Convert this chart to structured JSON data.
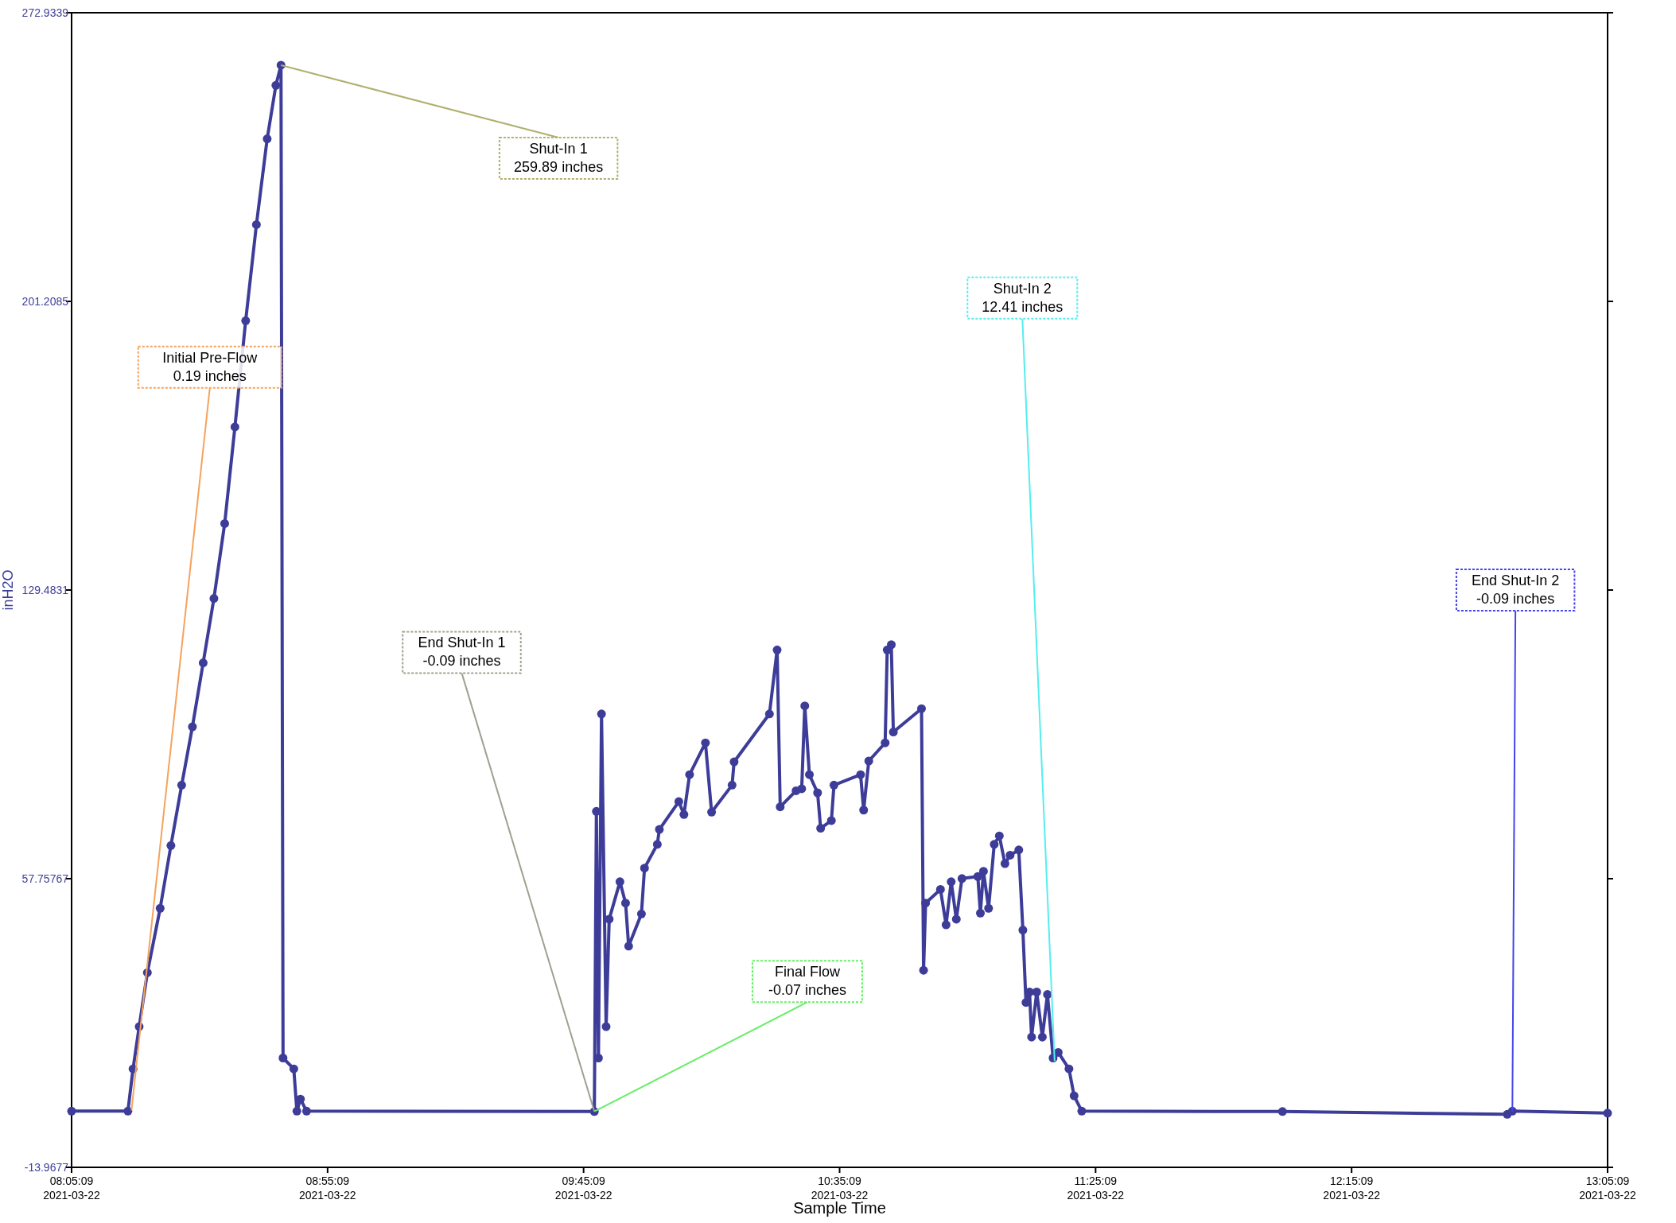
{
  "chart_data": {
    "type": "line",
    "xlabel": "Sample Time",
    "ylabel": "inH2O",
    "x": [
      "2021-03-22T08:05:09",
      "2021-03-22T08:16:09",
      "2021-03-22T08:17:09",
      "2021-03-22T08:18:21",
      "2021-03-22T08:19:57",
      "2021-03-22T08:22:27",
      "2021-03-22T08:24:33",
      "2021-03-22T08:26:39",
      "2021-03-22T08:28:45",
      "2021-03-22T08:30:51",
      "2021-03-22T08:32:57",
      "2021-03-22T08:35:03",
      "2021-03-22T08:37:03",
      "2021-03-22T08:39:09",
      "2021-03-22T08:41:15",
      "2021-03-22T08:43:21",
      "2021-03-22T08:45:03",
      "2021-03-22T08:46:03",
      "2021-03-22T08:46:27",
      "2021-03-22T08:48:33",
      "2021-03-22T08:49:09",
      "2021-03-22T08:49:51",
      "2021-03-22T08:51:03",
      "2021-03-22T09:47:15",
      "2021-03-22T09:47:39",
      "2021-03-22T09:48:03",
      "2021-03-22T09:48:39",
      "2021-03-22T09:49:33",
      "2021-03-22T09:50:09",
      "2021-03-22T09:52:15",
      "2021-03-22T09:53:21",
      "2021-03-22T09:53:57",
      "2021-03-22T09:56:27",
      "2021-03-22T09:57:03",
      "2021-03-22T09:59:33",
      "2021-03-22T09:59:57",
      "2021-03-22T10:03:45",
      "2021-03-22T10:04:45",
      "2021-03-22T10:05:51",
      "2021-03-22T10:08:57",
      "2021-03-22T10:10:09",
      "2021-03-22T10:14:09",
      "2021-03-22T10:14:33",
      "2021-03-22T10:21:27",
      "2021-03-22T10:22:57",
      "2021-03-22T10:23:33",
      "2021-03-22T10:26:39",
      "2021-03-22T10:27:45",
      "2021-03-22T10:28:21",
      "2021-03-22T10:29:15",
      "2021-03-22T10:30:51",
      "2021-03-22T10:31:27",
      "2021-03-22T10:33:33",
      "2021-03-22T10:34:03",
      "2021-03-22T10:39:15",
      "2021-03-22T10:39:51",
      "2021-03-22T10:40:51",
      "2021-03-22T10:44:03",
      "2021-03-22T10:44:27",
      "2021-03-22T10:45:15",
      "2021-03-22T10:45:39",
      "2021-03-22T10:51:09",
      "2021-03-22T10:51:33",
      "2021-03-22T10:51:57",
      "2021-03-22T10:54:51",
      "2021-03-22T10:55:57",
      "2021-03-22T10:56:57",
      "2021-03-22T10:57:57",
      "2021-03-22T10:59:03",
      "2021-03-22T11:02:09",
      "2021-03-22T11:02:39",
      "2021-03-22T11:03:15",
      "2021-03-22T11:04:15",
      "2021-03-22T11:05:21",
      "2021-03-22T11:06:21",
      "2021-03-22T11:07:27",
      "2021-03-22T11:08:27",
      "2021-03-22T11:10:09",
      "2021-03-22T11:10:57",
      "2021-03-22T11:11:33",
      "2021-03-22T11:12:15",
      "2021-03-22T11:12:39",
      "2021-03-22T11:13:39",
      "2021-03-22T11:14:45",
      "2021-03-22T11:15:45",
      "2021-03-22T11:16:51",
      "2021-03-22T11:17:51",
      "2021-03-22T11:19:57",
      "2021-03-22T11:20:57",
      "2021-03-22T11:22:27",
      "2021-03-22T12:01:39",
      "2021-03-22T12:45:33",
      "2021-03-22T12:46:33",
      "2021-03-22T13:05:09"
    ],
    "series": [
      {
        "color": "#3d3d99",
        "values": [
          0,
          0,
          10.5,
          21,
          34.4,
          50.4,
          66,
          81,
          95.5,
          111.4,
          127.4,
          146,
          170,
          196.4,
          220.3,
          241.6,
          254.9,
          259.9,
          13.2,
          10.5,
          0,
          3,
          0,
          -0.1,
          74.5,
          13.2,
          98.7,
          21,
          47.7,
          57,
          51.7,
          41,
          49,
          60.4,
          66.3,
          70,
          76.9,
          73.7,
          83.6,
          91.5,
          74.3,
          81,
          86.8,
          98.7,
          114.6,
          75.6,
          79.6,
          80.1,
          100.7,
          83.6,
          79.1,
          70.3,
          72.2,
          81,
          83.6,
          74.8,
          87,
          91.5,
          114.6,
          115.9,
          94.2,
          100,
          35,
          51.7,
          55.1,
          46.3,
          57,
          47.7,
          57.8,
          58.3,
          49.2,
          59.6,
          50.4,
          66.3,
          68.4,
          61.5,
          63.6,
          64.9,
          45,
          27,
          29.6,
          18.4,
          29.6,
          18.4,
          29,
          13.2,
          14.6,
          10.5,
          3.8,
          0,
          -0.1,
          -0.8,
          0,
          -0.5
        ]
      }
    ],
    "xlim": [
      "2021-03-22T08:05:09",
      "2021-03-22T13:05:09"
    ],
    "xticks": [
      {
        "value": "2021-03-22T08:05:09",
        "label": "08:05:09\n2021-03-22"
      },
      {
        "value": "2021-03-22T08:55:09",
        "label": "08:55:09\n2021-03-22"
      },
      {
        "value": "2021-03-22T09:45:09",
        "label": "09:45:09\n2021-03-22"
      },
      {
        "value": "2021-03-22T10:35:09",
        "label": "10:35:09\n2021-03-22"
      },
      {
        "value": "2021-03-22T11:25:09",
        "label": "11:25:09\n2021-03-22"
      },
      {
        "value": "2021-03-22T12:15:09",
        "label": "12:15:09\n2021-03-22"
      },
      {
        "value": "2021-03-22T13:05:09",
        "label": "13:05:09\n2021-03-22"
      }
    ],
    "ylim": [
      -13.9677,
      272.9339
    ],
    "yticks": [
      -13.9677,
      57.75767,
      129.4831,
      201.2085,
      272.9339
    ],
    "marker": "circle",
    "line_style": "solid",
    "grid": false,
    "annotations": [
      {
        "text": "Initial Pre-Flow\n0.19 inches",
        "x": "2021-03-22T08:16:51",
        "y": 0.19
      },
      {
        "text": "Shut-In 1\n259.89 inches",
        "x": "2021-03-22T08:46:03",
        "y": 259.89
      },
      {
        "text": "End Shut-In 1\n-0.09 inches",
        "x": "2021-03-22T09:47:15",
        "y": -0.09
      },
      {
        "text": "Final Flow\n-0.07 inches",
        "x": "2021-03-22T09:47:15",
        "y": -0.07
      },
      {
        "text": "Shut-In 2\n12.41 inches",
        "x": "2021-03-22T11:17:09",
        "y": 12.41
      },
      {
        "text": "End Shut-In 2\n-0.09 inches",
        "x": "2021-03-22T12:46:33",
        "y": -0.09
      }
    ]
  }
}
